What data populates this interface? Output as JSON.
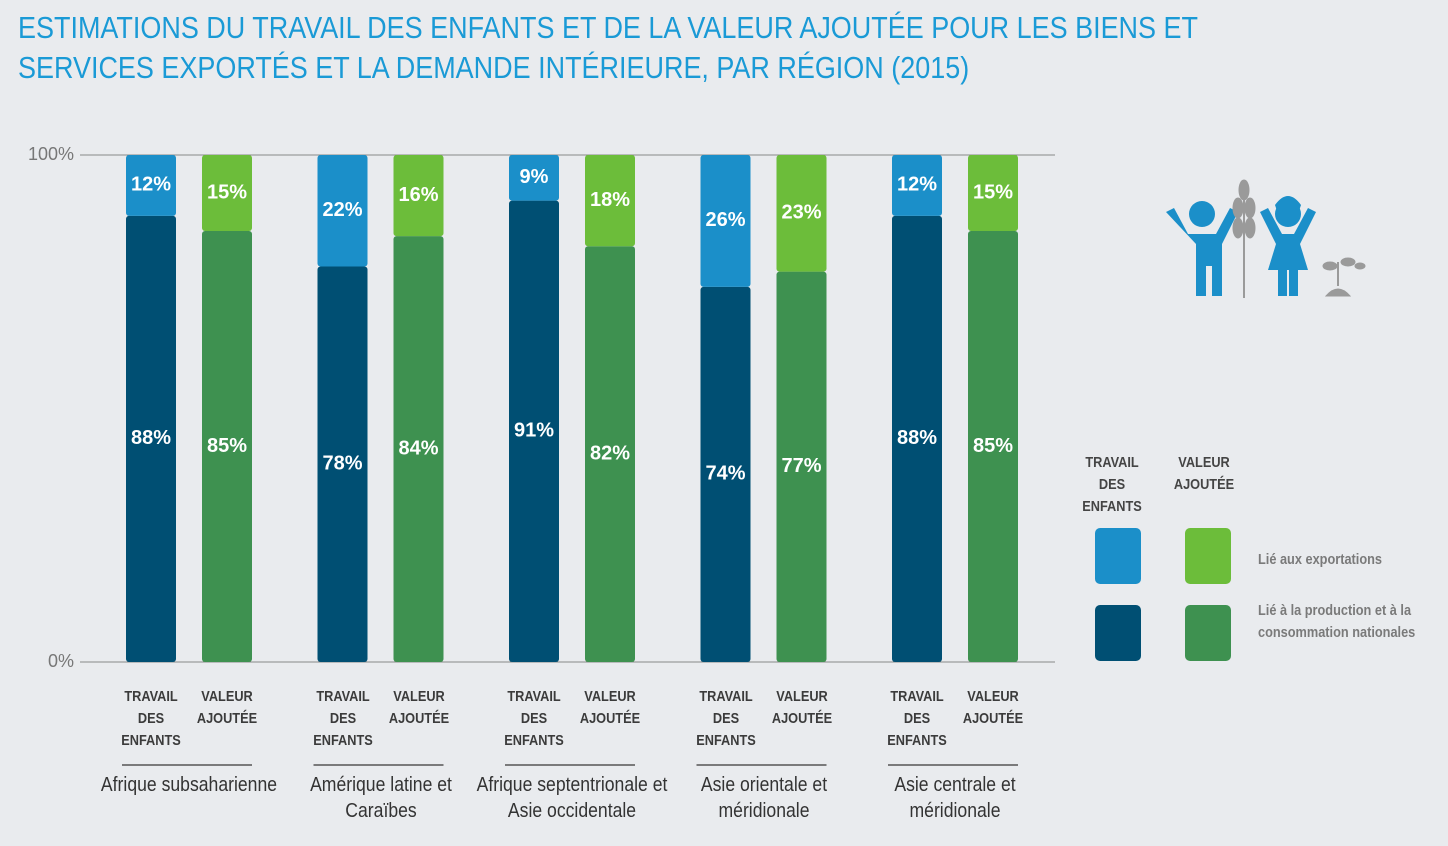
{
  "chart_data": {
    "type": "grouped_stacked_bar",
    "title": "ESTIMATIONS DU TRAVAIL DES ENFANTS ET DE LA VALEUR AJOUTÉE POUR LES BIENS ET SERVICES EXPORTÉS ET LA DEMANDE INTÉRIEURE, PAR RÉGION (2015)",
    "categories": [
      "Afrique subsaharienne",
      "Amérique latine et Caraïbes",
      "Afrique septentrionale et Asie occidentale",
      "Asie orientale et méridionale",
      "Asie centrale et méridionale"
    ],
    "bars": [
      "TRAVAIL DES ENFANTS",
      "VALEUR AJOUTÉE"
    ],
    "segments": [
      "Lié à la production et à la consommation nationales",
      "Lié aux exportations"
    ],
    "colors": [
      [
        "#004f73",
        "#1b8fc9"
      ],
      [
        "#3e9150",
        "#6cbd3a"
      ]
    ],
    "values": [
      [
        [
          88,
          78,
          91,
          74,
          88
        ],
        [
          12,
          22,
          9,
          26,
          12
        ]
      ],
      [
        [
          85,
          84,
          82,
          77,
          85
        ],
        [
          15,
          16,
          18,
          23,
          15
        ]
      ]
    ],
    "value_labels": [
      [
        [
          "88%",
          "78%",
          "91%",
          "74%",
          "88%"
        ],
        [
          "12%",
          "22%",
          "9%",
          "26%",
          "12%"
        ]
      ],
      [
        [
          "85%",
          "84%",
          "82%",
          "77%",
          "85%"
        ],
        [
          "15%",
          "16%",
          "18%",
          "23%",
          "15%"
        ]
      ]
    ],
    "ylim": [
      0,
      100
    ],
    "yticks": [
      {
        "value": 0,
        "label": "0%"
      },
      {
        "value": 100,
        "label": "100%"
      }
    ],
    "grid": true
  }
}
